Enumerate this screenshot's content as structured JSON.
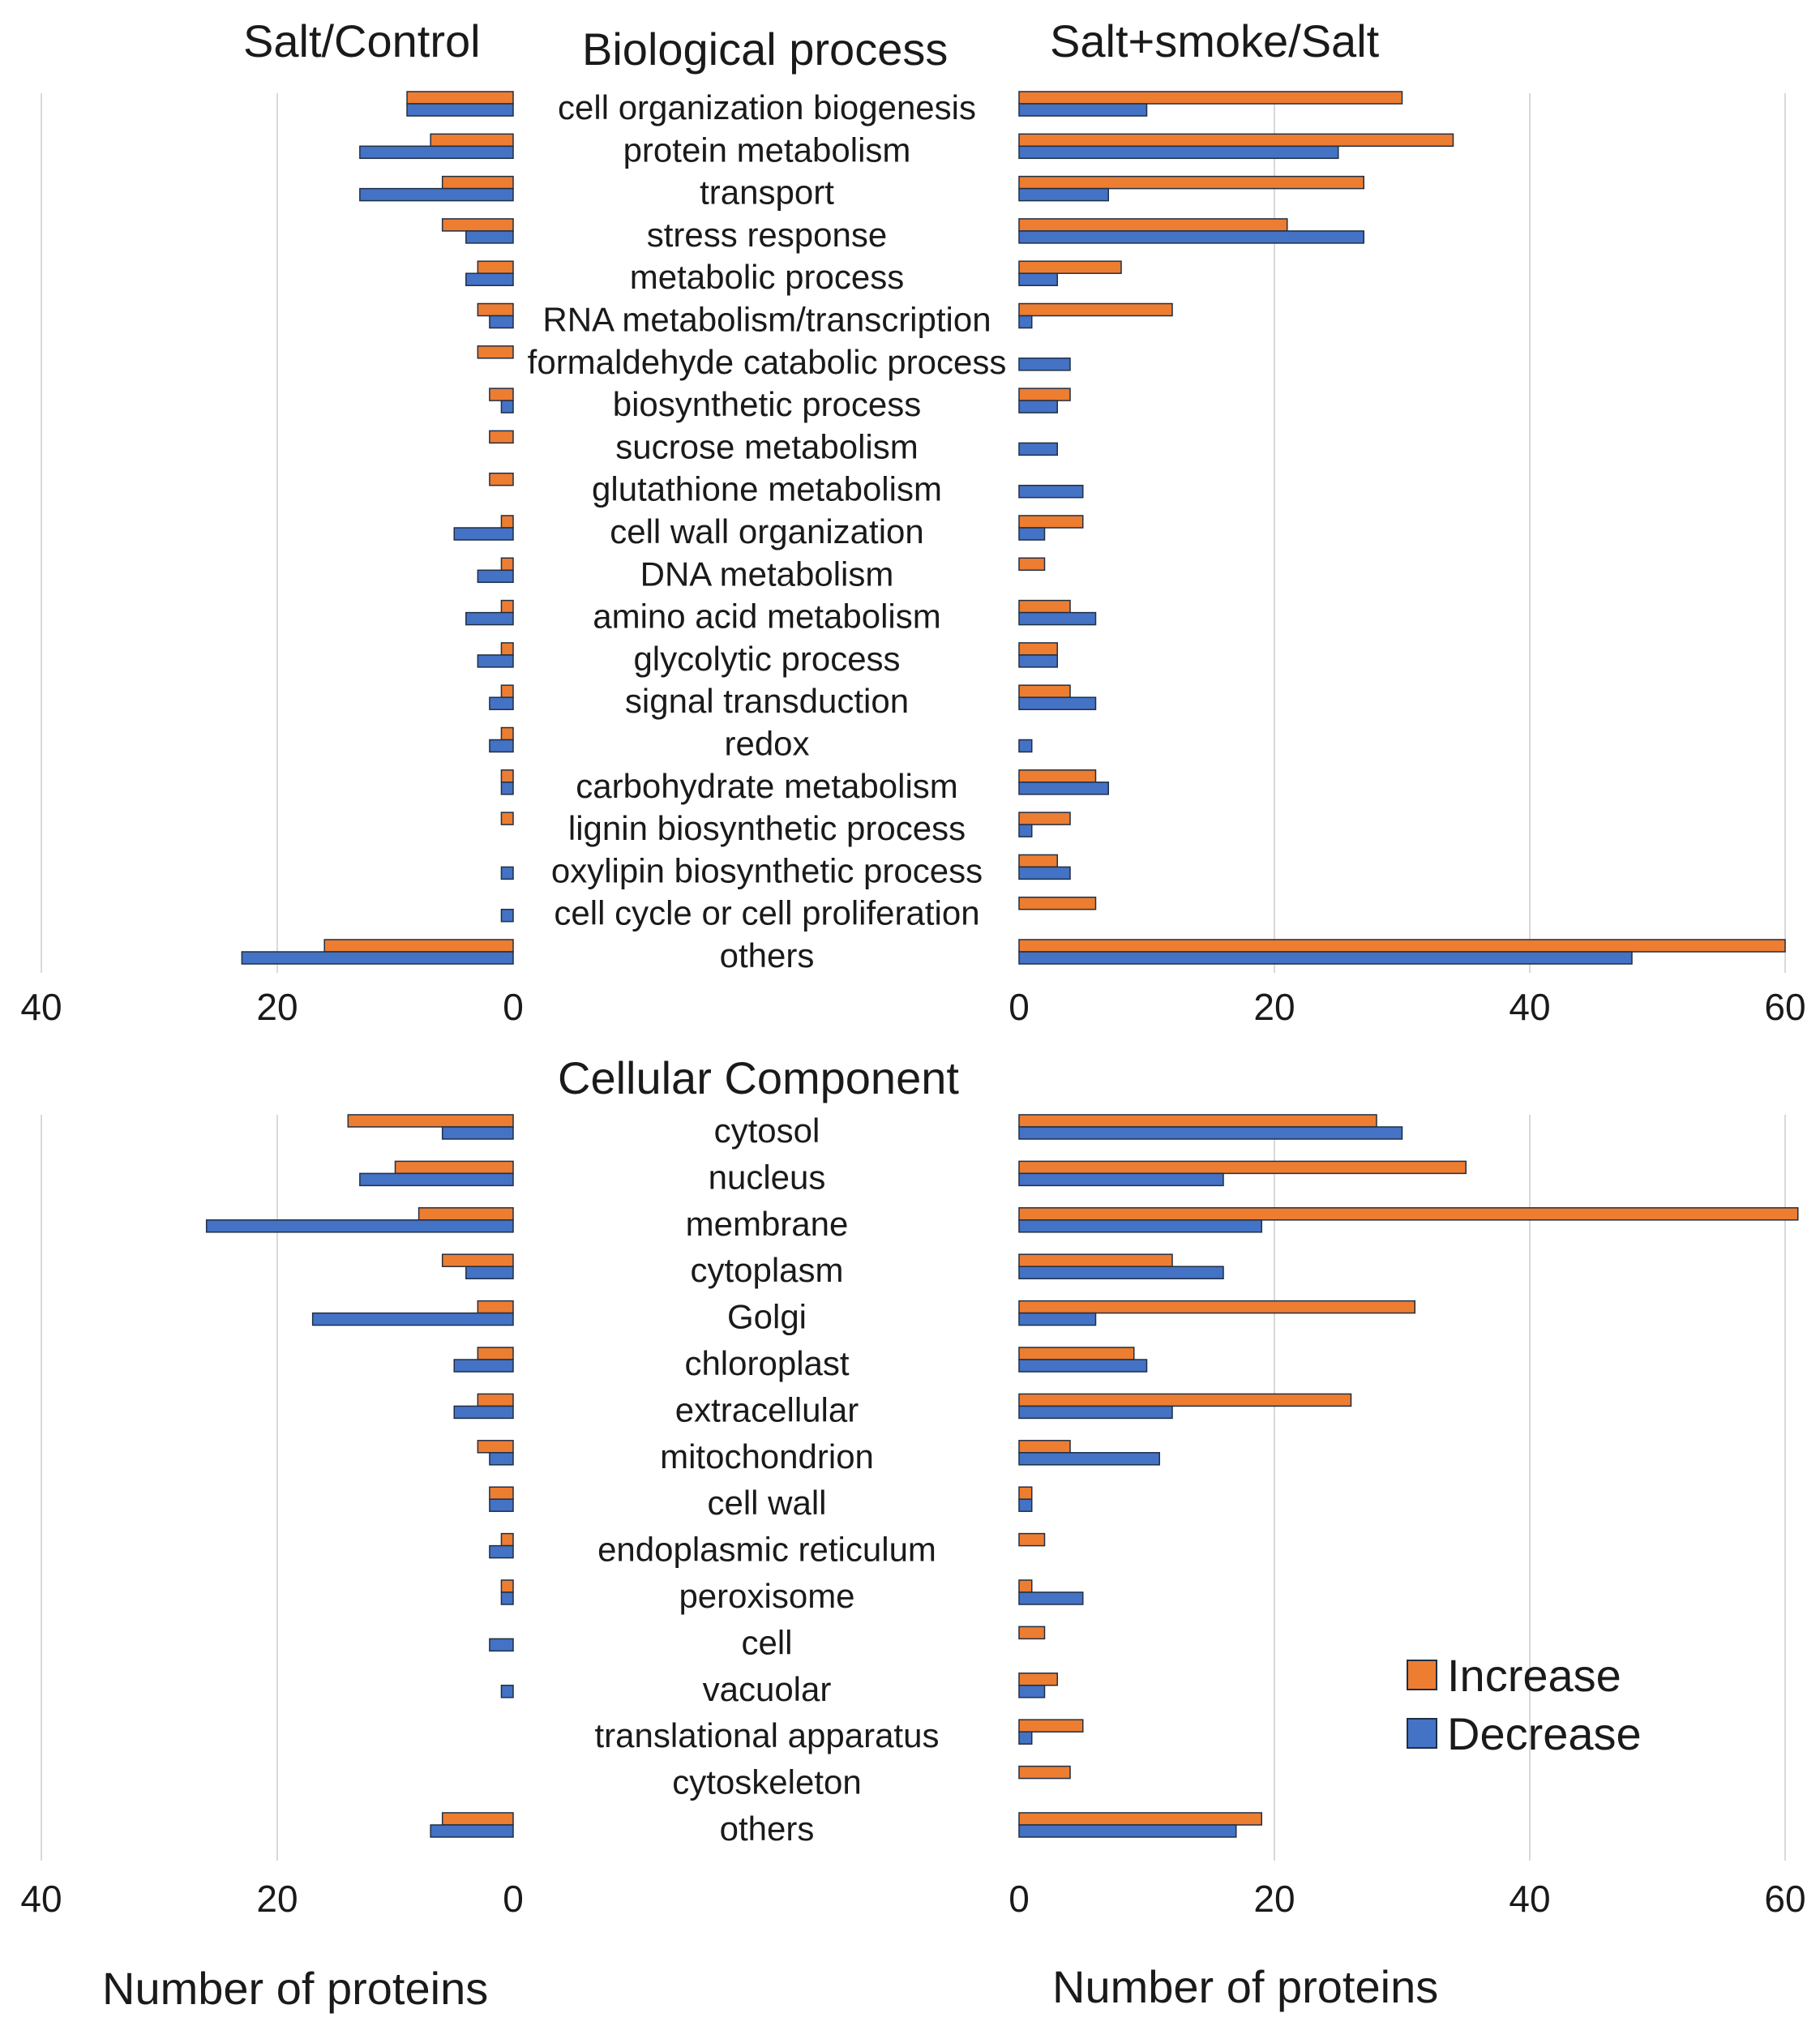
{
  "colors": {
    "increase": "#ED7D31",
    "decrease": "#4472C4",
    "grid": "#d9d9d9",
    "text": "#1a1a1a"
  },
  "headers": {
    "left": "Salt/Control",
    "center_top": "Biological process",
    "right": "Salt+smoke/Salt",
    "center_bottom": "Cellular Component"
  },
  "axis_titles": {
    "left": "Number of proteins",
    "right": "Number of proteins"
  },
  "legend": {
    "increase": "Increase",
    "decrease": "Decrease"
  },
  "chart_data": [
    {
      "type": "bar",
      "title": "Biological process",
      "orientation": "horizontal",
      "legend_position": "right",
      "grid": true,
      "categories": [
        "cell organization biogenesis",
        "protein metabolism",
        "transport",
        "stress response",
        "metabolic process",
        "RNA metabolism/transcription",
        "formaldehyde catabolic process",
        "biosynthetic process",
        "sucrose metabolism",
        "glutathione metabolism",
        "cell wall organization",
        "DNA metabolism",
        "amino acid metabolism",
        "glycolytic process",
        "signal transduction",
        "redox",
        "carbohydrate metabolism",
        "lignin biosynthetic process",
        "oxylipin biosynthetic process",
        "cell cycle or cell proliferation",
        "others"
      ],
      "panels": [
        {
          "label": "Salt/Control",
          "xlim": [
            0,
            40
          ],
          "ticks": [
            0,
            20,
            40
          ],
          "direction": "reversed",
          "series": [
            {
              "name": "Increase",
              "values": [
                9,
                7,
                6,
                6,
                3,
                3,
                3,
                2,
                2,
                2,
                1,
                1,
                1,
                1,
                1,
                1,
                1,
                1,
                0,
                0,
                16
              ]
            },
            {
              "name": "Decrease",
              "values": [
                9,
                13,
                13,
                4,
                4,
                2,
                0,
                1,
                0,
                0,
                5,
                3,
                4,
                3,
                2,
                2,
                1,
                0,
                1,
                1,
                23
              ]
            }
          ]
        },
        {
          "label": "Salt+smoke/Salt",
          "xlim": [
            0,
            60
          ],
          "ticks": [
            0,
            20,
            40,
            60
          ],
          "direction": "normal",
          "series": [
            {
              "name": "Increase",
              "values": [
                30,
                34,
                27,
                21,
                8,
                12,
                0,
                4,
                0,
                0,
                5,
                2,
                4,
                3,
                4,
                0,
                6,
                4,
                3,
                6,
                60
              ]
            },
            {
              "name": "Decrease",
              "values": [
                10,
                25,
                7,
                27,
                3,
                1,
                4,
                3,
                3,
                5,
                2,
                0,
                6,
                3,
                6,
                1,
                7,
                1,
                4,
                0,
                48
              ]
            }
          ]
        }
      ]
    },
    {
      "type": "bar",
      "title": "Cellular Component",
      "orientation": "horizontal",
      "legend_position": "right",
      "grid": true,
      "categories": [
        "cytosol",
        "nucleus",
        "membrane",
        "cytoplasm",
        "Golgi",
        "chloroplast",
        "extracellular",
        "mitochondrion",
        "cell wall",
        "endoplasmic  reticulum",
        "peroxisome",
        "cell",
        "vacuolar",
        "translational  apparatus",
        "cytoskeleton",
        "others"
      ],
      "panels": [
        {
          "label": "Salt/Control",
          "xlabel": "Number of proteins",
          "xlim": [
            0,
            40
          ],
          "ticks": [
            0,
            20,
            40
          ],
          "direction": "reversed",
          "series": [
            {
              "name": "Increase",
              "values": [
                14,
                10,
                8,
                6,
                3,
                3,
                3,
                3,
                2,
                1,
                1,
                0,
                0,
                0,
                0,
                6
              ]
            },
            {
              "name": "Decrease",
              "values": [
                6,
                13,
                26,
                4,
                17,
                5,
                5,
                2,
                2,
                2,
                1,
                2,
                1,
                0,
                0,
                7
              ]
            }
          ]
        },
        {
          "label": "Salt+smoke/Salt",
          "xlabel": "Number of proteins",
          "xlim": [
            0,
            60
          ],
          "ticks": [
            0,
            20,
            40,
            60
          ],
          "direction": "normal",
          "series": [
            {
              "name": "Increase",
              "values": [
                28,
                35,
                61,
                12,
                31,
                9,
                26,
                4,
                1,
                2,
                1,
                2,
                3,
                5,
                4,
                19
              ]
            },
            {
              "name": "Decrease",
              "values": [
                30,
                16,
                19,
                16,
                6,
                10,
                12,
                11,
                1,
                0,
                5,
                0,
                2,
                1,
                0,
                17
              ]
            }
          ]
        }
      ]
    }
  ]
}
